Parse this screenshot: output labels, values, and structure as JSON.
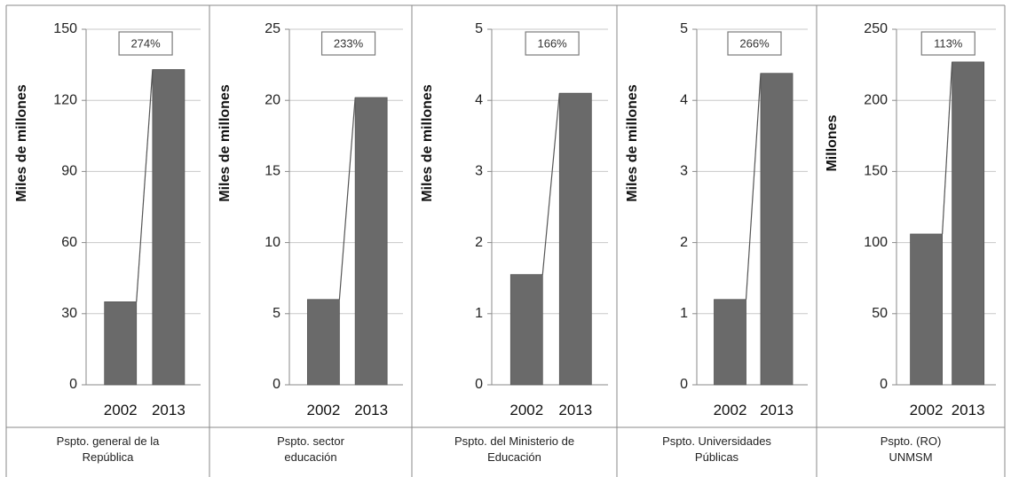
{
  "chart_data": [
    {
      "type": "bar",
      "categories": [
        "2002",
        "2013"
      ],
      "values": [
        35,
        133
      ],
      "ylabel": "Miles de millones",
      "ylim": [
        0,
        150
      ],
      "yticks": [
        0,
        30,
        60,
        90,
        120,
        150
      ],
      "badge": "274%",
      "caption": [
        "Pspto. general de la",
        "República"
      ],
      "grid": true
    },
    {
      "type": "bar",
      "categories": [
        "2002",
        "2013"
      ],
      "values": [
        6,
        20.2
      ],
      "ylabel": "Miles de millones",
      "ylim": [
        0,
        25
      ],
      "yticks": [
        0,
        5,
        10,
        15,
        20,
        25
      ],
      "badge": "233%",
      "caption": [
        "Pspto. sector",
        "educación"
      ],
      "grid": true
    },
    {
      "type": "bar",
      "categories": [
        "2002",
        "2013"
      ],
      "values": [
        1.55,
        4.1
      ],
      "ylabel": "Miles de millones",
      "ylim": [
        0,
        5
      ],
      "yticks": [
        0,
        1,
        2,
        3,
        4,
        5
      ],
      "badge": "166%",
      "caption": [
        "Pspto. del Ministerio de",
        "Educación"
      ],
      "grid": true
    },
    {
      "type": "bar",
      "categories": [
        "2002",
        "2013"
      ],
      "values": [
        1.2,
        4.38
      ],
      "ylabel": "Miles de millones",
      "ylim": [
        0,
        5
      ],
      "yticks": [
        0,
        1,
        2,
        3,
        4,
        5
      ],
      "badge": "266%",
      "caption": [
        "Pspto. Universidades",
        "Públicas"
      ],
      "grid": true
    },
    {
      "type": "bar",
      "categories": [
        "2002",
        "2013"
      ],
      "values": [
        106,
        227
      ],
      "ylabel": "Millones",
      "ylim": [
        0,
        250
      ],
      "yticks": [
        0,
        50,
        100,
        150,
        200,
        250
      ],
      "badge": "113%",
      "caption": [
        "Pspto. (RO)",
        "UNMSM"
      ],
      "grid": true
    }
  ]
}
